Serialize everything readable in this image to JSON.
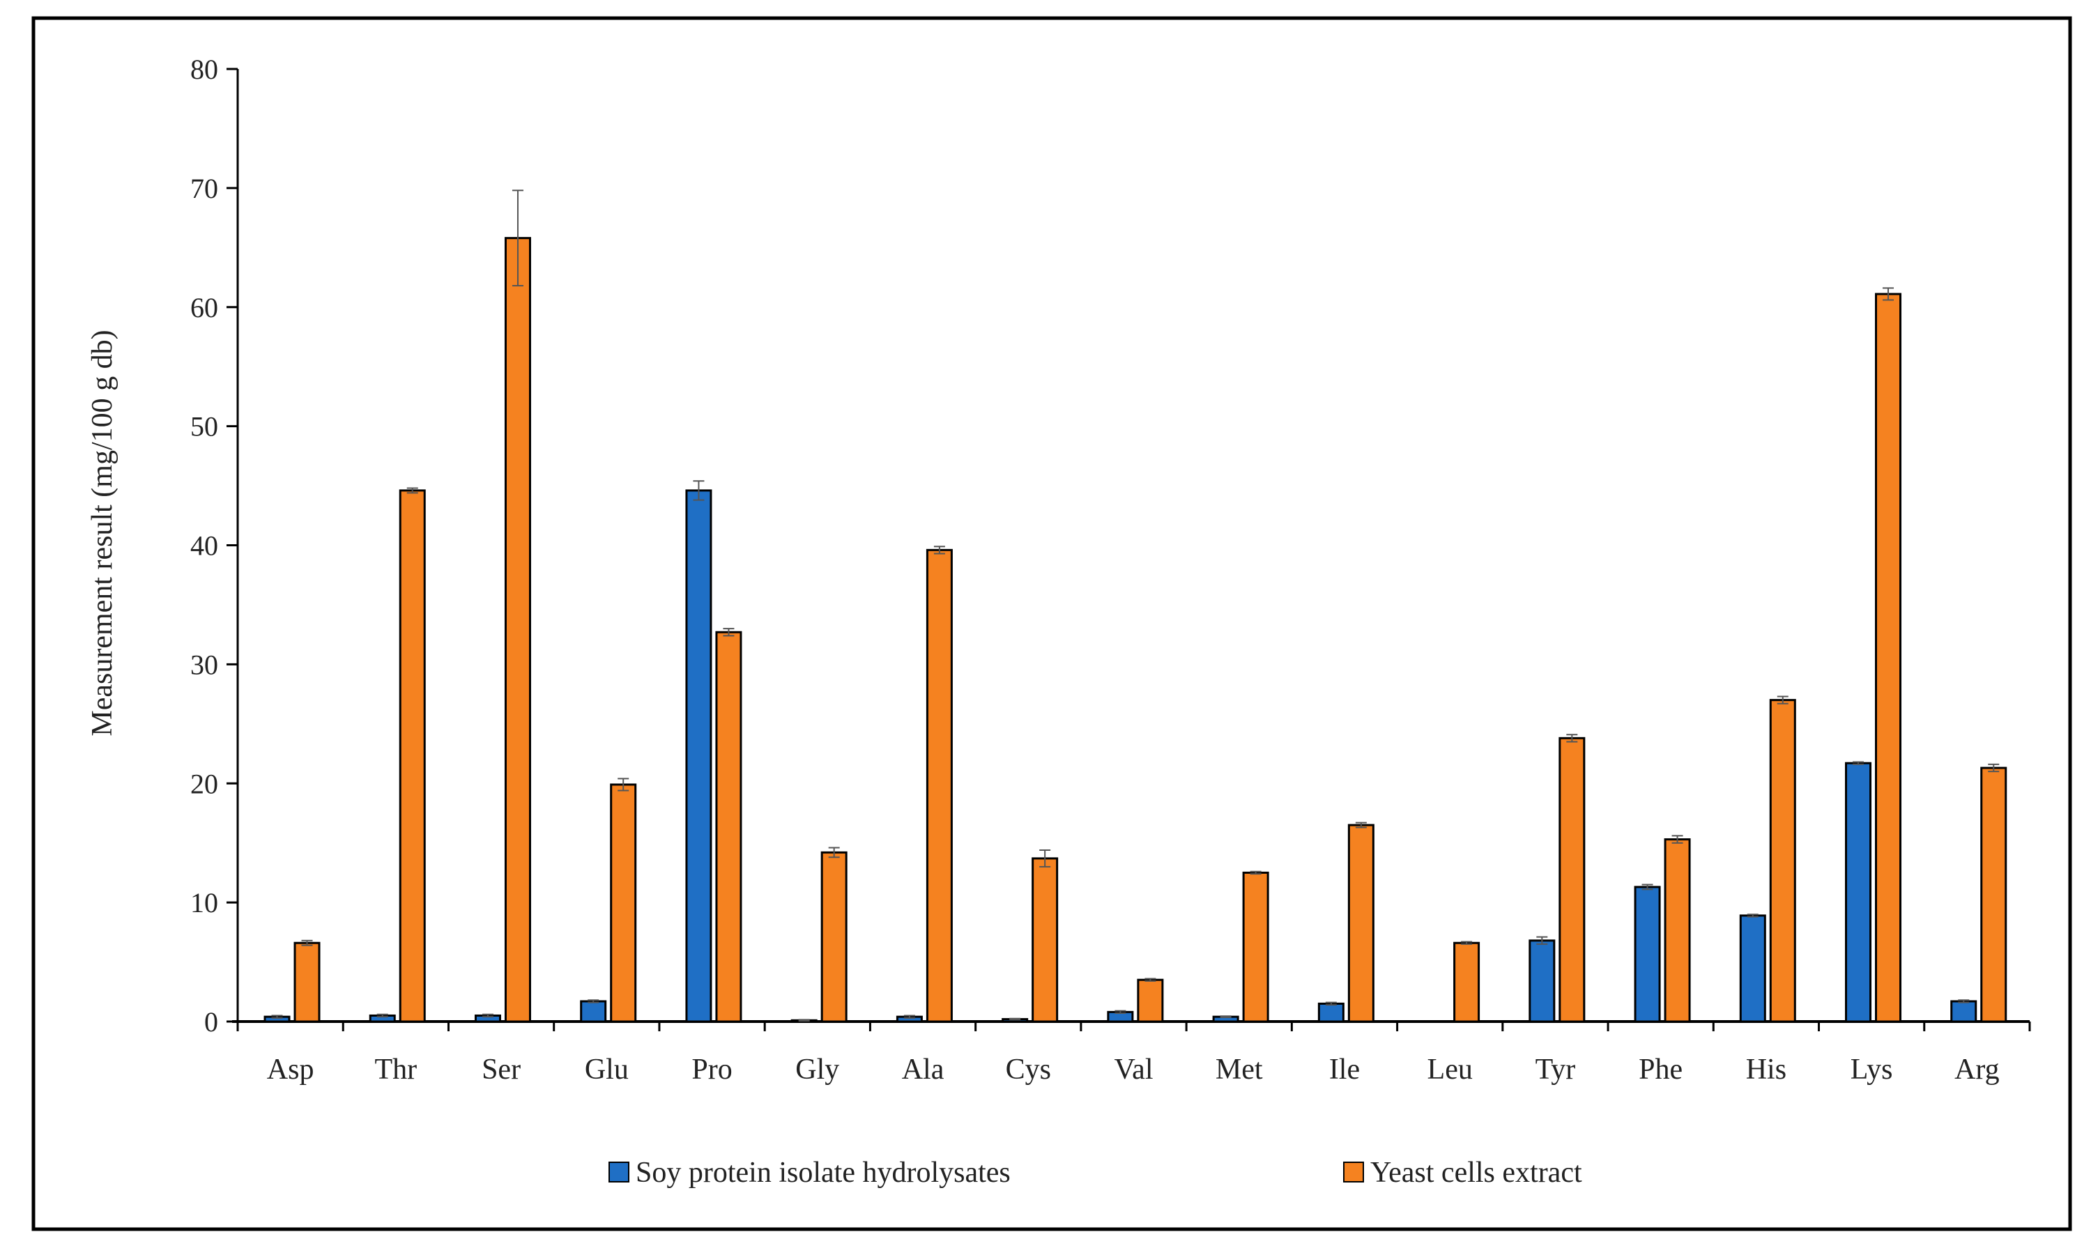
{
  "chart_data": {
    "type": "bar",
    "title": "",
    "xlabel": "",
    "ylabel": "Measurement result (mg/100 g db)",
    "ylim": [
      0,
      80
    ],
    "yticks": [
      0,
      10,
      20,
      30,
      40,
      50,
      60,
      70,
      80
    ],
    "grid": false,
    "legend_position": "bottom",
    "categories": [
      "Asp",
      "Thr",
      "Ser",
      "Glu",
      "Pro",
      "Gly",
      "Ala",
      "Cys",
      "Val",
      "Met",
      "Ile",
      "Leu",
      "Tyr",
      "Phe",
      "His",
      "Lys",
      "Arg"
    ],
    "series": [
      {
        "name": "Soy protein isolate hydrolysates",
        "color": "#1f6fc5",
        "values": [
          0.4,
          0.5,
          0.5,
          1.7,
          44.6,
          0.1,
          0.4,
          0.2,
          0.8,
          0.4,
          1.5,
          0,
          6.8,
          11.3,
          8.9,
          21.7,
          1.7
        ],
        "errors": [
          0.1,
          0.1,
          0.1,
          0.1,
          0.8,
          0.05,
          0.1,
          0.05,
          0.1,
          0.05,
          0.1,
          0,
          0.3,
          0.2,
          0.1,
          0.1,
          0.1
        ]
      },
      {
        "name": "Yeast cells extract",
        "color": "#f58220",
        "values": [
          6.6,
          44.6,
          65.8,
          19.9,
          32.7,
          14.2,
          39.6,
          13.7,
          3.5,
          12.5,
          16.5,
          6.6,
          23.8,
          15.3,
          27.0,
          61.1,
          21.3
        ],
        "errors": [
          0.2,
          0.2,
          4.0,
          0.5,
          0.3,
          0.4,
          0.3,
          0.7,
          0.1,
          0.1,
          0.2,
          0.1,
          0.3,
          0.3,
          0.3,
          0.5,
          0.3
        ]
      }
    ]
  }
}
